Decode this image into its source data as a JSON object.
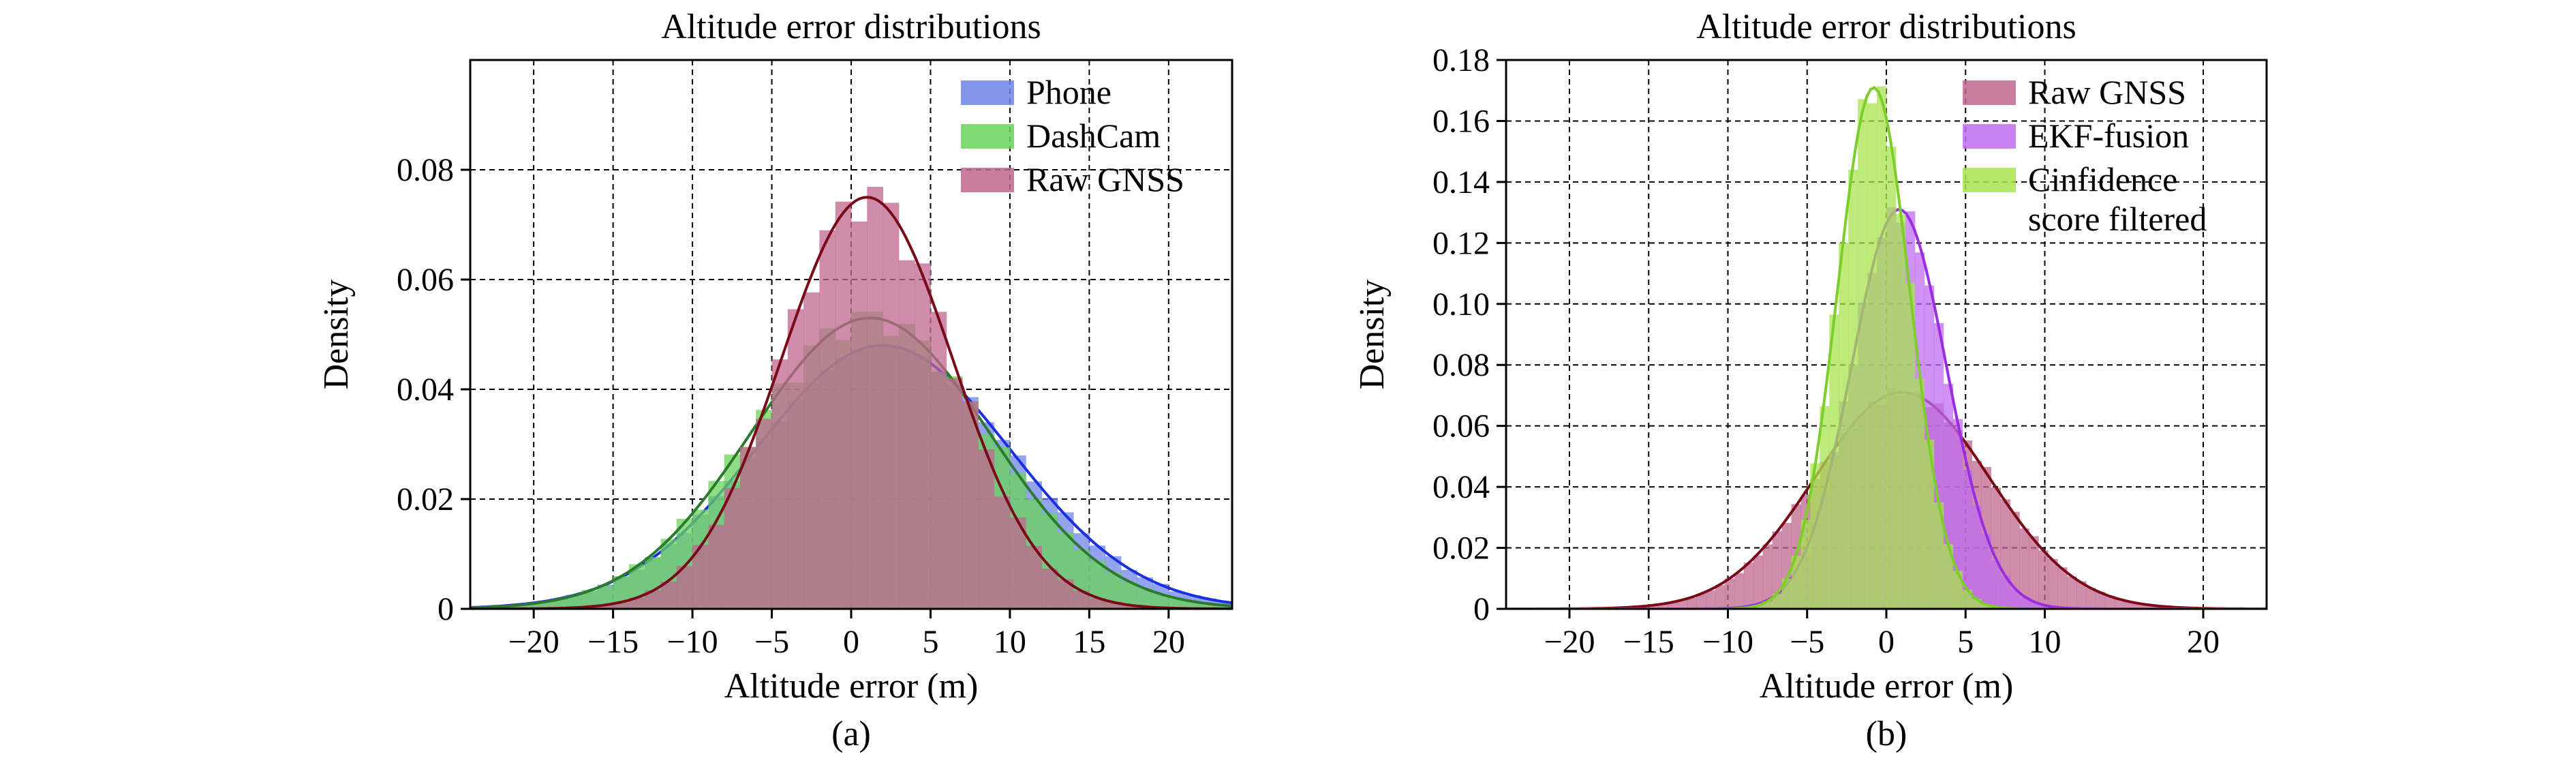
{
  "charts": [
    {
      "id": "a",
      "caption": "(a)",
      "title": "Altitude error distributions",
      "xlabel": "Altitude error (m)",
      "ylabel": "Density",
      "xlim": [
        -24,
        24
      ],
      "ylim": [
        0,
        0.1
      ],
      "xticks": [
        -20,
        -15,
        -10,
        -5,
        0,
        5,
        10,
        15,
        20
      ],
      "yticks": [
        0,
        0.02,
        0.04,
        0.06,
        0.08
      ],
      "ytick_labels": [
        "0",
        "0.02",
        "0.04",
        "0.06",
        "0.08"
      ],
      "grid": true,
      "legend_position": "top-right",
      "chart_data": {
        "type": "histogram with kde",
        "series": [
          {
            "name": "Phone",
            "color": "#6f84e8",
            "line_color": "#1a2fe0",
            "mean": 2.0,
            "std": 8.0,
            "peak": 0.048
          },
          {
            "name": "DashCam",
            "color": "#6ad35a",
            "line_color": "#2c7a2c",
            "mean": 1.2,
            "std": 7.5,
            "peak": 0.053
          },
          {
            "name": "Raw GNSS",
            "color": "#c0678f",
            "line_color": "#7a0a18",
            "mean": 1.0,
            "std": 5.4,
            "peak": 0.075
          }
        ]
      }
    },
    {
      "id": "b",
      "caption": "(b)",
      "title": "Altitude error distributions",
      "xlabel": "Altitude error (m)",
      "ylabel": "Density",
      "xlim": [
        -24,
        24
      ],
      "ylim": [
        0,
        0.18
      ],
      "xticks": [
        -20,
        -15,
        -10,
        -5,
        0,
        5,
        10,
        20
      ],
      "yticks": [
        0,
        0.02,
        0.04,
        0.06,
        0.08,
        0.1,
        0.12,
        0.14,
        0.16,
        0.18
      ],
      "ytick_labels": [
        "0",
        "0.02",
        "0.04",
        "0.06",
        "0.08",
        "0.10",
        "0.12",
        "0.14",
        "0.16",
        "0.18"
      ],
      "grid": true,
      "legend_position": "top-right",
      "chart_data": {
        "type": "histogram with kde",
        "series": [
          {
            "name": "Raw GNSS",
            "color": "#c0678f",
            "line_color": "#7a0a18",
            "mean": 1.0,
            "std": 5.5,
            "peak": 0.071
          },
          {
            "name": "EKF-fusion",
            "color": "#c06cf0",
            "line_color": "#9b2de0",
            "mean": 0.8,
            "std": 3.0,
            "peak": 0.131
          },
          {
            "name": "Cinfidence\nscore filtered",
            "color": "#a7e34f",
            "line_color": "#7ccf2a",
            "mean": -0.8,
            "std": 2.3,
            "peak": 0.171
          }
        ]
      }
    }
  ]
}
